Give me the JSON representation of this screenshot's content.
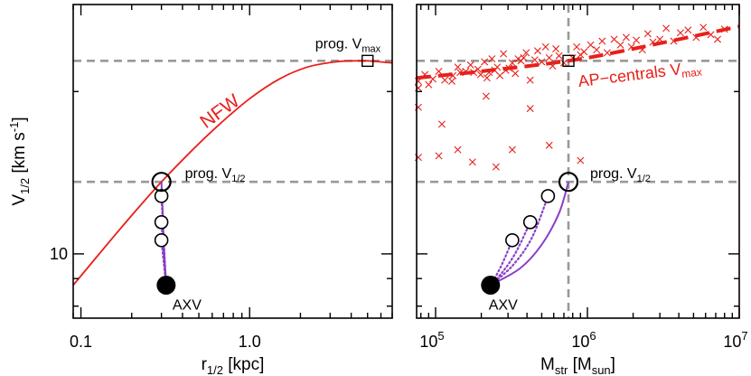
{
  "colors": {
    "nfw": "#e8201a",
    "ap": "#e8201a",
    "track": "#8a3fc8",
    "guide": "#999999",
    "axis": "#000000"
  },
  "chart_data": [
    {
      "type": "line",
      "panel": "left",
      "xlabel": {
        "base": "r",
        "sub": "1/2",
        "unit": " [kpc]"
      },
      "ylabel": {
        "base": "V",
        "sub": "1/2",
        "unit": " [km s",
        "sup": "-1",
        "end": "]"
      },
      "xscale": "log",
      "yscale": "log",
      "xlim": [
        0.09,
        7.0
      ],
      "ylim": [
        7.6,
        29.0
      ],
      "xticks": [
        {
          "value": 0.1,
          "label": "0.1"
        },
        {
          "value": 1.0,
          "label": "1.0"
        }
      ],
      "yticks": [
        {
          "value": 10,
          "label": "10"
        }
      ],
      "hlines": [
        22.8,
        13.6
      ],
      "series": [
        {
          "name": "NFW",
          "x": [
            0.09,
            0.15,
            0.22,
            0.3,
            0.45,
            0.65,
            1.0,
            1.5,
            2.2,
            3.2,
            4.2,
            5.0,
            6.0,
            7.0
          ],
          "y": [
            8.75,
            10.6,
            12.2,
            13.6,
            15.5,
            17.3,
            19.4,
            21.1,
            22.2,
            22.7,
            22.8,
            22.8,
            22.7,
            22.6
          ]
        }
      ],
      "points": {
        "prog_vmax": {
          "x": 5.0,
          "y": 22.8,
          "label": {
            "base": "prog. V",
            "sub": "max"
          }
        },
        "prog_vhalf": {
          "x": 0.3,
          "y": 13.6,
          "label": {
            "base": "prog. V",
            "sub": "1/2"
          }
        },
        "intermediate": [
          {
            "x": 0.3,
            "y": 12.8
          },
          {
            "x": 0.3,
            "y": 11.45
          },
          {
            "x": 0.3,
            "y": 10.6
          }
        ],
        "axv": {
          "x": 0.32,
          "y": 8.75,
          "label": "AXV"
        }
      },
      "tracks": {
        "solid": [
          [
            0.3,
            13.6
          ],
          [
            0.305,
            12.0
          ],
          [
            0.31,
            10.4
          ],
          [
            0.32,
            8.75
          ]
        ],
        "dotted": [
          [
            [
              0.3,
              12.8
            ],
            [
              0.31,
              10.5
            ],
            [
              0.32,
              8.75
            ]
          ],
          [
            [
              0.3,
              11.45
            ],
            [
              0.31,
              10.0
            ],
            [
              0.32,
              8.75
            ]
          ],
          [
            [
              0.3,
              10.6
            ],
            [
              0.31,
              9.6
            ],
            [
              0.32,
              8.75
            ]
          ]
        ]
      },
      "annotations": [
        {
          "text": "NFW",
          "x": 0.7,
          "y": 18.0,
          "rotate": -36
        }
      ]
    },
    {
      "type": "scatter",
      "panel": "right",
      "xlabel": {
        "base": "M",
        "sub": "str",
        "unit": " [M",
        "sub2": "sun",
        "end": "]"
      },
      "xscale": "log",
      "yscale": "log",
      "xlim": [
        75000,
        10000000
      ],
      "ylim": [
        7.6,
        29.0
      ],
      "xticks": [
        {
          "value": 100000,
          "base": "10",
          "exp": "5"
        },
        {
          "value": 1000000,
          "base": "10",
          "exp": "6"
        },
        {
          "value": 10000000,
          "base": "10",
          "exp": "7"
        }
      ],
      "vline": 750000,
      "hlines": [
        22.8,
        13.6
      ],
      "series": [
        {
          "name": "AP-centrals V_max",
          "fit": {
            "x": [
              75000,
              200000,
              750000,
              2000000,
              10000000
            ],
            "y": [
              21.2,
              21.8,
              22.8,
              24.0,
              26.4
            ]
          },
          "points": [
            [
              77000,
              20.3
            ],
            [
              77000,
              18.7
            ],
            [
              77000,
              15.1
            ],
            [
              77000,
              20.9
            ],
            [
              85000,
              21.5
            ],
            [
              90000,
              20.6
            ],
            [
              96000,
              21.1
            ],
            [
              105000,
              21.8
            ],
            [
              115000,
              21.0
            ],
            [
              128000,
              20.9
            ],
            [
              130000,
              21.4
            ],
            [
              140000,
              22.2
            ],
            [
              145000,
              21.7
            ],
            [
              158000,
              21.8
            ],
            [
              170000,
              22.4
            ],
            [
              178000,
              21.7
            ],
            [
              190000,
              22.0
            ],
            [
              198000,
              21.5
            ],
            [
              210000,
              22.7
            ],
            [
              218000,
              21.2
            ],
            [
              225000,
              21.7
            ],
            [
              235000,
              23.0
            ],
            [
              245000,
              21.9
            ],
            [
              255000,
              22.2
            ],
            [
              265000,
              21.4
            ],
            [
              280000,
              23.5
            ],
            [
              290000,
              21.9
            ],
            [
              305000,
              22.1
            ],
            [
              320000,
              22.6
            ],
            [
              335000,
              21.6
            ],
            [
              350000,
              23.0
            ],
            [
              365000,
              22.8
            ],
            [
              380000,
              23.1
            ],
            [
              395000,
              23.6
            ],
            [
              420000,
              21.0
            ],
            [
              450000,
              22.9
            ],
            [
              470000,
              23.8
            ],
            [
              500000,
              22.7
            ],
            [
              530000,
              24.2
            ],
            [
              560000,
              23.1
            ],
            [
              590000,
              22.3
            ],
            [
              620000,
              24.0
            ],
            [
              650000,
              23.3
            ],
            [
              700000,
              22.6
            ],
            [
              800000,
              23.1
            ],
            [
              850000,
              24.2
            ],
            [
              900000,
              23.4
            ],
            [
              950000,
              23.7
            ],
            [
              1050000,
              24.4
            ],
            [
              1150000,
              23.9
            ],
            [
              1250000,
              24.8
            ],
            [
              1350000,
              23.6
            ],
            [
              1500000,
              25.0
            ],
            [
              1650000,
              24.4
            ],
            [
              1800000,
              25.2
            ],
            [
              1950000,
              24.2
            ],
            [
              2100000,
              24.9
            ],
            [
              2300000,
              23.9
            ],
            [
              2500000,
              25.6
            ],
            [
              2700000,
              24.7
            ],
            [
              3000000,
              25.0
            ],
            [
              3300000,
              26.2
            ],
            [
              3700000,
              24.8
            ],
            [
              4100000,
              25.7
            ],
            [
              4600000,
              26.0
            ],
            [
              5200000,
              25.2
            ],
            [
              5800000,
              26.3
            ],
            [
              6500000,
              25.5
            ],
            [
              7200000,
              25.0
            ],
            [
              8000000,
              26.1
            ],
            [
              105000,
              15.2
            ],
            [
              140000,
              15.6
            ],
            [
              175000,
              14.8
            ],
            [
              250000,
              14.5
            ],
            [
              320000,
              15.6
            ],
            [
              560000,
              15.9
            ],
            [
              900000,
              14.9
            ],
            [
              215000,
              19.6
            ],
            [
              420000,
              18.6
            ],
            [
              110000,
              17.4
            ]
          ]
        }
      ],
      "points": {
        "prog_vmax": {
          "x": 750000,
          "y": 22.8
        },
        "prog_vhalf": {
          "x": 750000,
          "y": 13.6,
          "label": {
            "base": "prog. V",
            "sub": "1/2"
          }
        },
        "intermediate": [
          {
            "x": 550000,
            "y": 12.8
          },
          {
            "x": 420000,
            "y": 11.45
          },
          {
            "x": 320000,
            "y": 10.6
          }
        ],
        "axv": {
          "x": 230000,
          "y": 8.75,
          "label": "AXV"
        }
      },
      "tracks": {
        "solid": [
          [
            750000,
            13.6
          ],
          [
            650000,
            11.9
          ],
          [
            500000,
            10.4
          ],
          [
            360000,
            9.4
          ],
          [
            230000,
            8.75
          ]
        ],
        "dotted": [
          [
            [
              550000,
              12.8
            ],
            [
              430000,
              10.7
            ],
            [
              320000,
              9.5
            ],
            [
              230000,
              8.75
            ]
          ],
          [
            [
              420000,
              11.45
            ],
            [
              340000,
              10.1
            ],
            [
              280000,
              9.3
            ],
            [
              230000,
              8.75
            ]
          ],
          [
            [
              320000,
              10.6
            ],
            [
              280000,
              9.7
            ],
            [
              250000,
              9.1
            ],
            [
              230000,
              8.75
            ]
          ]
        ]
      },
      "annotations": [
        {
          "base": "AP−centrals V",
          "sub": "max",
          "x": 1400000,
          "y": 20.4,
          "rotate": -7
        }
      ]
    }
  ]
}
